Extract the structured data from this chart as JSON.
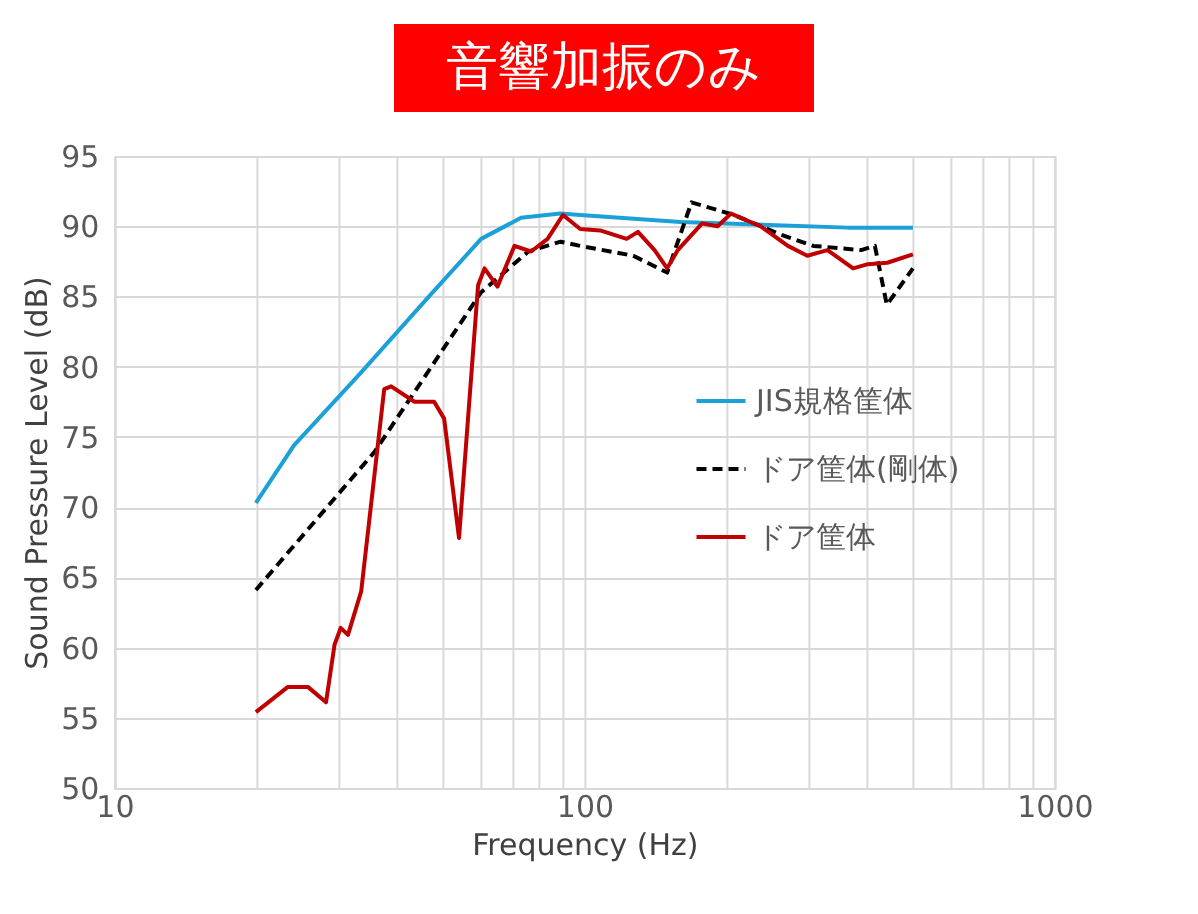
{
  "chart_data": {
    "type": "line",
    "title": "音響加振のみ",
    "xlabel": "Frequency (Hz)",
    "ylabel": "Sound Pressure Level (dB)",
    "log": "x",
    "grid": true,
    "legend": "right",
    "xlim": [
      10,
      1000
    ],
    "xticks": [
      10,
      {
        "value": 20,
        "label": null
      },
      {
        "value": 30,
        "label": null
      },
      {
        "value": 40,
        "label": null
      },
      {
        "value": 50,
        "label": null
      },
      {
        "value": 60,
        "label": null
      },
      {
        "value": 70,
        "label": null
      },
      {
        "value": 80,
        "label": null
      },
      {
        "value": 90,
        "label": null
      },
      100,
      {
        "value": 200,
        "label": null
      },
      {
        "value": 300,
        "label": null
      },
      {
        "value": 400,
        "label": null
      },
      {
        "value": 500,
        "label": null
      },
      {
        "value": 600,
        "label": null
      },
      {
        "value": 700,
        "label": null
      },
      {
        "value": 800,
        "label": null
      },
      {
        "value": 900,
        "label": null
      },
      1000
    ],
    "ylim": [
      50,
      95
    ],
    "yticks": [
      50,
      55,
      60,
      65,
      70,
      75,
      80,
      85,
      90,
      95
    ],
    "series": [
      {
        "name": "JIS規格筐体",
        "color": "#1ba1d8",
        "line_style": "solid",
        "x": [
          20,
          24.1,
          33.5,
          46.4,
          60.3,
          73.3,
          88.9,
          98,
          160,
          363,
          500
        ],
        "values": [
          70.3,
          74.4,
          79.6,
          84.9,
          89.1,
          90.6,
          90.9,
          90.8,
          90.3,
          89.9,
          89.9
        ]
      },
      {
        "name": "ドア筐体(剛体)",
        "color": "#000000",
        "line_style": "dashed",
        "x": [
          20,
          35.7,
          60.3,
          76,
          89,
          98,
          127,
          150,
          169,
          208,
          262,
          307,
          388,
          415,
          440,
          500
        ],
        "values": [
          64.1,
          73.9,
          85.3,
          88.2,
          88.9,
          88.6,
          87.9,
          86.7,
          91.7,
          90.8,
          89.4,
          88.6,
          88.3,
          88.6,
          84.4,
          87.0
        ]
      },
      {
        "name": "ドア筐体",
        "color": "#c00000",
        "line_style": "solid",
        "x": [
          20,
          23.4,
          25.8,
          28.2,
          29.4,
          30.3,
          31.4,
          33.5,
          37.5,
          38.8,
          43.5,
          47.9,
          50.3,
          54.1,
          59.4,
          61.3,
          65.3,
          71,
          77,
          83.5,
          90,
          98,
          108,
          123,
          130,
          141,
          150,
          158,
          178,
          192,
          205,
          237,
          271,
          298,
          329,
          373,
          401,
          441,
          500
        ],
        "values": [
          55.4,
          57.2,
          57.2,
          56.1,
          60.2,
          61.4,
          60.9,
          64.0,
          78.4,
          78.6,
          77.5,
          77.5,
          76.3,
          67.8,
          85.8,
          87.0,
          85.7,
          88.6,
          88.2,
          89.1,
          90.8,
          89.8,
          89.7,
          89.1,
          89.6,
          88.3,
          87.0,
          88.3,
          90.2,
          90.0,
          90.9,
          90.0,
          88.6,
          87.9,
          88.3,
          87.0,
          87.3,
          87.4,
          88.0
        ]
      }
    ]
  }
}
